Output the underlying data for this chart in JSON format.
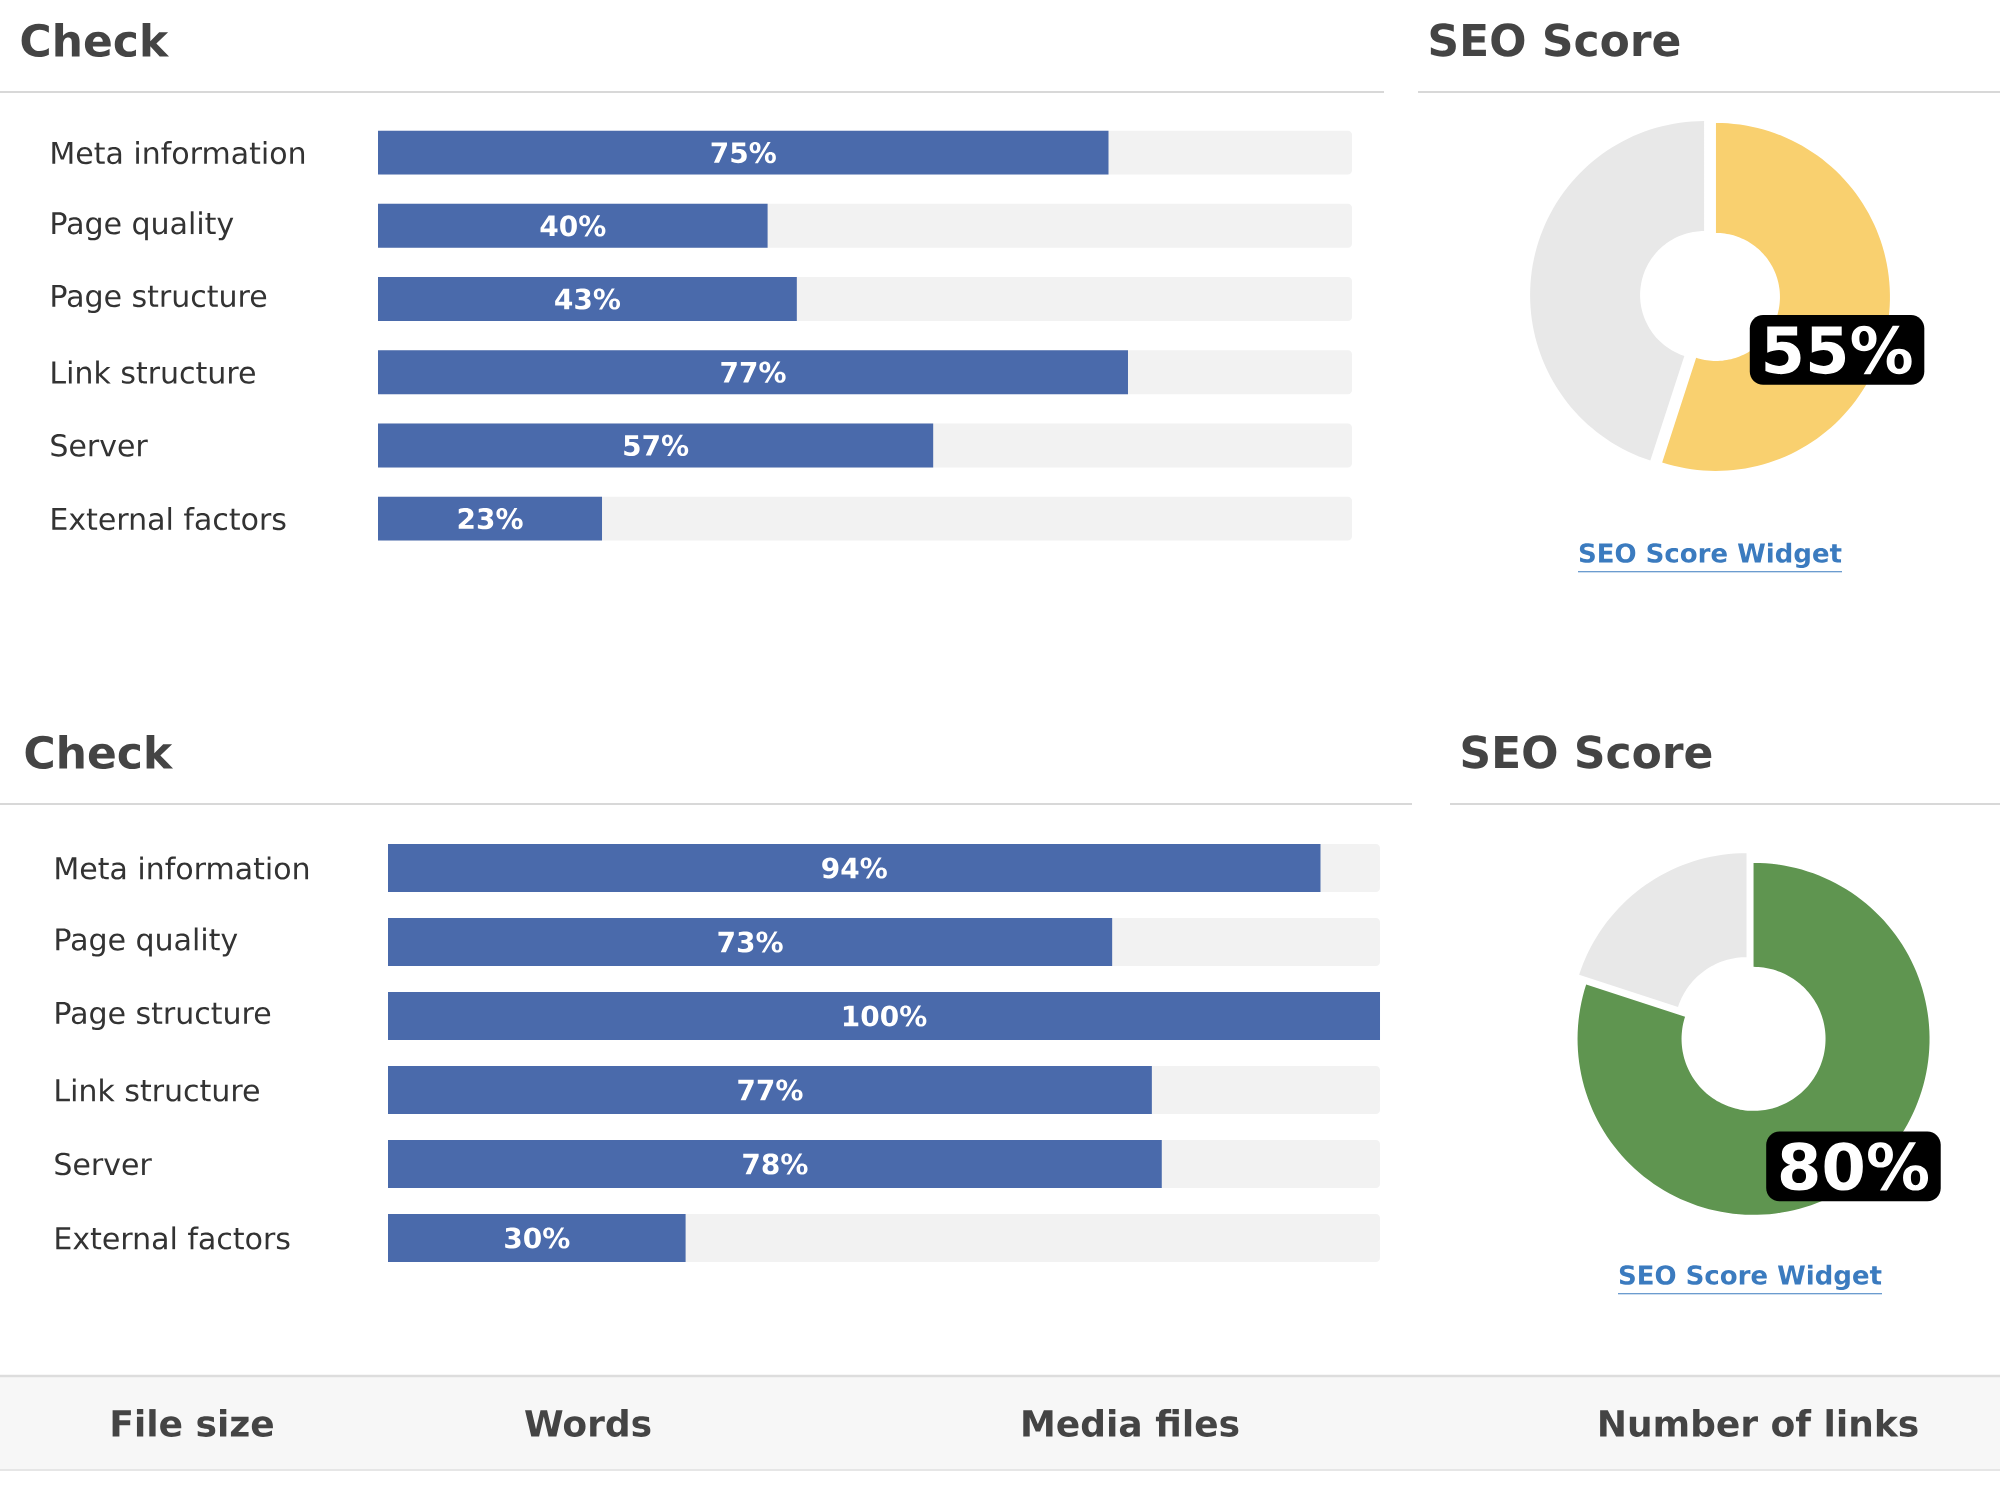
{
  "chart_data": [
    {
      "type": "bar",
      "title": "Check",
      "orientation": "horizontal",
      "tick_labels": "y",
      "categories": [
        "Meta information",
        "Page quality",
        "Page structure",
        "Link structure",
        "Server",
        "External factors"
      ],
      "values": [
        75,
        40,
        43,
        77,
        57,
        23
      ],
      "value_labels": [
        "75%",
        "40%",
        "43%",
        "77%",
        "57%",
        "23%"
      ],
      "color": "#4a6aab",
      "xlim": [
        0,
        100
      ]
    },
    {
      "type": "donut",
      "title": "SEO Score",
      "categories": [
        null,
        null
      ],
      "values": [
        55,
        45
      ],
      "colors": [
        "#f9d06f",
        "#e8e8e8"
      ],
      "value_labels": [
        "55%",
        null
      ],
      "annotations": [
        "SEO Score Widget"
      ]
    },
    {
      "type": "bar",
      "title": "Check",
      "orientation": "horizontal",
      "tick_labels": "y",
      "categories": [
        "Meta information",
        "Page quality",
        "Page structure",
        "Link structure",
        "Server",
        "External factors"
      ],
      "values": [
        94,
        73,
        100,
        77,
        78,
        30
      ],
      "value_labels": [
        "94%",
        "73%",
        "100%",
        "77%",
        "78%",
        "30%"
      ],
      "color": "#4a6aab",
      "xlim": [
        0,
        100
      ]
    },
    {
      "type": "donut",
      "title": "SEO Score",
      "categories": [
        null,
        null
      ],
      "values": [
        80,
        20
      ],
      "colors": [
        "#5f9550",
        "#e8e8e8"
      ],
      "value_labels": [
        "80%",
        null
      ],
      "annotations": [
        "SEO Score Widget"
      ]
    },
    {
      "type": "other",
      "annotations": [
        "File size",
        "Words",
        "Media files",
        "Number of links"
      ]
    }
  ]
}
